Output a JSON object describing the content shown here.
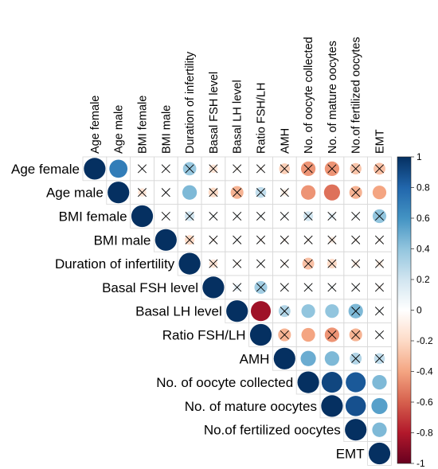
{
  "chart_data": {
    "type": "heatmap",
    "subtype": "correlation-upper-circles",
    "variables": [
      "Age female",
      "Age male",
      "BMI female",
      "BMI male",
      "Duration of infertility",
      "Basal FSH level",
      "Basal LH level",
      "Ratio FSH/LH",
      "AMH",
      "No. of oocyte collected",
      "No. of mature oocytes",
      "No.of fertilized oocytes",
      "EMT"
    ],
    "cells": [
      {
        "row": 0,
        "col": 0,
        "value": 1.0,
        "crossed": false
      },
      {
        "row": 0,
        "col": 1,
        "value": 0.7,
        "crossed": false
      },
      {
        "row": 0,
        "col": 2,
        "value": 0.03,
        "crossed": true
      },
      {
        "row": 0,
        "col": 3,
        "value": 0.02,
        "crossed": true
      },
      {
        "row": 0,
        "col": 4,
        "value": 0.38,
        "crossed": true
      },
      {
        "row": 0,
        "col": 5,
        "value": -0.15,
        "crossed": true
      },
      {
        "row": 0,
        "col": 6,
        "value": -0.05,
        "crossed": true
      },
      {
        "row": 0,
        "col": 7,
        "value": -0.05,
        "crossed": true
      },
      {
        "row": 0,
        "col": 8,
        "value": -0.25,
        "crossed": true
      },
      {
        "row": 0,
        "col": 9,
        "value": -0.45,
        "crossed": true
      },
      {
        "row": 0,
        "col": 10,
        "value": -0.45,
        "crossed": true
      },
      {
        "row": 0,
        "col": 11,
        "value": -0.28,
        "crossed": true
      },
      {
        "row": 0,
        "col": 12,
        "value": -0.3,
        "crossed": true
      },
      {
        "row": 1,
        "col": 1,
        "value": 1.0,
        "crossed": false
      },
      {
        "row": 1,
        "col": 2,
        "value": -0.15,
        "crossed": true
      },
      {
        "row": 1,
        "col": 3,
        "value": 0.02,
        "crossed": true
      },
      {
        "row": 1,
        "col": 4,
        "value": 0.45,
        "crossed": false
      },
      {
        "row": 1,
        "col": 5,
        "value": -0.2,
        "crossed": true
      },
      {
        "row": 1,
        "col": 6,
        "value": -0.35,
        "crossed": true
      },
      {
        "row": 1,
        "col": 7,
        "value": 0.25,
        "crossed": true
      },
      {
        "row": 1,
        "col": 8,
        "value": -0.1,
        "crossed": true
      },
      {
        "row": 1,
        "col": 9,
        "value": -0.45,
        "crossed": false
      },
      {
        "row": 1,
        "col": 10,
        "value": -0.55,
        "crossed": false
      },
      {
        "row": 1,
        "col": 11,
        "value": -0.35,
        "crossed": true
      },
      {
        "row": 1,
        "col": 12,
        "value": -0.4,
        "crossed": false
      },
      {
        "row": 2,
        "col": 2,
        "value": 1.0,
        "crossed": false
      },
      {
        "row": 2,
        "col": 3,
        "value": 0.02,
        "crossed": true
      },
      {
        "row": 2,
        "col": 4,
        "value": 0.2,
        "crossed": true
      },
      {
        "row": 2,
        "col": 5,
        "value": 0.05,
        "crossed": true
      },
      {
        "row": 2,
        "col": 6,
        "value": 0.05,
        "crossed": true
      },
      {
        "row": 2,
        "col": 7,
        "value": 0.05,
        "crossed": true
      },
      {
        "row": 2,
        "col": 8,
        "value": 0.05,
        "crossed": true
      },
      {
        "row": 2,
        "col": 9,
        "value": 0.2,
        "crossed": true
      },
      {
        "row": 2,
        "col": 10,
        "value": 0.1,
        "crossed": true
      },
      {
        "row": 2,
        "col": 11,
        "value": 0.05,
        "crossed": true
      },
      {
        "row": 2,
        "col": 12,
        "value": 0.4,
        "crossed": true
      },
      {
        "row": 3,
        "col": 3,
        "value": 1.0,
        "crossed": false
      },
      {
        "row": 3,
        "col": 4,
        "value": -0.2,
        "crossed": true
      },
      {
        "row": 3,
        "col": 5,
        "value": -0.05,
        "crossed": true
      },
      {
        "row": 3,
        "col": 6,
        "value": 0.03,
        "crossed": true
      },
      {
        "row": 3,
        "col": 7,
        "value": -0.05,
        "crossed": true
      },
      {
        "row": 3,
        "col": 8,
        "value": -0.05,
        "crossed": true
      },
      {
        "row": 3,
        "col": 9,
        "value": -0.05,
        "crossed": true
      },
      {
        "row": 3,
        "col": 10,
        "value": -0.1,
        "crossed": true
      },
      {
        "row": 3,
        "col": 11,
        "value": -0.05,
        "crossed": true
      },
      {
        "row": 3,
        "col": 12,
        "value": -0.05,
        "crossed": true
      },
      {
        "row": 4,
        "col": 4,
        "value": 1.0,
        "crossed": false
      },
      {
        "row": 4,
        "col": 5,
        "value": -0.15,
        "crossed": true
      },
      {
        "row": 4,
        "col": 6,
        "value": -0.05,
        "crossed": true
      },
      {
        "row": 4,
        "col": 7,
        "value": 0.03,
        "crossed": true
      },
      {
        "row": 4,
        "col": 8,
        "value": -0.05,
        "crossed": true
      },
      {
        "row": 4,
        "col": 9,
        "value": -0.3,
        "crossed": true
      },
      {
        "row": 4,
        "col": 10,
        "value": -0.2,
        "crossed": true
      },
      {
        "row": 4,
        "col": 11,
        "value": -0.1,
        "crossed": true
      },
      {
        "row": 4,
        "col": 12,
        "value": -0.1,
        "crossed": true
      },
      {
        "row": 5,
        "col": 5,
        "value": 1.0,
        "crossed": false
      },
      {
        "row": 5,
        "col": 6,
        "value": 0.1,
        "crossed": true
      },
      {
        "row": 5,
        "col": 7,
        "value": 0.35,
        "crossed": true
      },
      {
        "row": 5,
        "col": 8,
        "value": 0.05,
        "crossed": true
      },
      {
        "row": 5,
        "col": 9,
        "value": 0.05,
        "crossed": true
      },
      {
        "row": 5,
        "col": 10,
        "value": 0.05,
        "crossed": true
      },
      {
        "row": 5,
        "col": 11,
        "value": 0.05,
        "crossed": true
      },
      {
        "row": 5,
        "col": 12,
        "value": -0.05,
        "crossed": true
      },
      {
        "row": 6,
        "col": 6,
        "value": 1.0,
        "crossed": false
      },
      {
        "row": 6,
        "col": 7,
        "value": -0.85,
        "crossed": false
      },
      {
        "row": 6,
        "col": 8,
        "value": 0.3,
        "crossed": true
      },
      {
        "row": 6,
        "col": 9,
        "value": 0.4,
        "crossed": false
      },
      {
        "row": 6,
        "col": 10,
        "value": 0.4,
        "crossed": false
      },
      {
        "row": 6,
        "col": 11,
        "value": 0.45,
        "crossed": true
      },
      {
        "row": 6,
        "col": 12,
        "value": 0.05,
        "crossed": true
      },
      {
        "row": 7,
        "col": 7,
        "value": 1.0,
        "crossed": false
      },
      {
        "row": 7,
        "col": 8,
        "value": -0.35,
        "crossed": true
      },
      {
        "row": 7,
        "col": 9,
        "value": -0.4,
        "crossed": false
      },
      {
        "row": 7,
        "col": 10,
        "value": -0.45,
        "crossed": true
      },
      {
        "row": 7,
        "col": 11,
        "value": -0.35,
        "crossed": true
      },
      {
        "row": 7,
        "col": 12,
        "value": 0.05,
        "crossed": true
      },
      {
        "row": 8,
        "col": 8,
        "value": 1.0,
        "crossed": false
      },
      {
        "row": 8,
        "col": 9,
        "value": 0.5,
        "crossed": false
      },
      {
        "row": 8,
        "col": 10,
        "value": 0.45,
        "crossed": false
      },
      {
        "row": 8,
        "col": 11,
        "value": 0.3,
        "crossed": true
      },
      {
        "row": 8,
        "col": 12,
        "value": 0.25,
        "crossed": true
      },
      {
        "row": 9,
        "col": 9,
        "value": 1.0,
        "crossed": false
      },
      {
        "row": 9,
        "col": 10,
        "value": 0.92,
        "crossed": false
      },
      {
        "row": 9,
        "col": 11,
        "value": 0.85,
        "crossed": false
      },
      {
        "row": 9,
        "col": 12,
        "value": 0.45,
        "crossed": false
      },
      {
        "row": 10,
        "col": 10,
        "value": 1.0,
        "crossed": false
      },
      {
        "row": 10,
        "col": 11,
        "value": 0.88,
        "crossed": false
      },
      {
        "row": 10,
        "col": 12,
        "value": 0.55,
        "crossed": false
      },
      {
        "row": 11,
        "col": 11,
        "value": 1.0,
        "crossed": false
      },
      {
        "row": 11,
        "col": 12,
        "value": 0.45,
        "crossed": false
      },
      {
        "row": 12,
        "col": 12,
        "value": 1.0,
        "crossed": false
      }
    ],
    "colorbar": {
      "range": [
        -1,
        1
      ],
      "ticks": [
        "1",
        "0.8",
        "0.6",
        "0.4",
        "0.2",
        "0",
        "-0.2",
        "-0.4",
        "-0.6",
        "-0.8",
        "-1"
      ],
      "placement": "right"
    },
    "colors": {
      "negative_end": "#67001f",
      "neutral": "#ffffff",
      "positive_end": "#053061",
      "grid": "#d8d8d8",
      "cross": "#000000"
    },
    "grid": true
  }
}
